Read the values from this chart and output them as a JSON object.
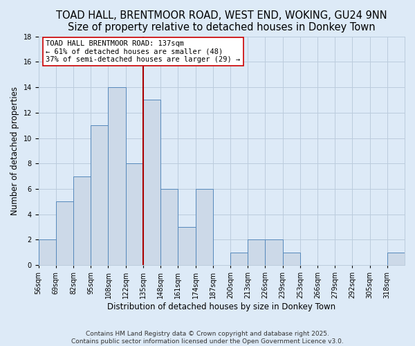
{
  "title": "TOAD HALL, BRENTMOOR ROAD, WEST END, WOKING, GU24 9NN",
  "subtitle": "Size of property relative to detached houses in Donkey Town",
  "xlabel": "Distribution of detached houses by size in Donkey Town",
  "ylabel": "Number of detached properties",
  "footer_line1": "Contains HM Land Registry data © Crown copyright and database right 2025.",
  "footer_line2": "Contains public sector information licensed under the Open Government Licence v3.0.",
  "bar_labels": [
    "56sqm",
    "69sqm",
    "82sqm",
    "95sqm",
    "108sqm",
    "122sqm",
    "135sqm",
    "148sqm",
    "161sqm",
    "174sqm",
    "187sqm",
    "200sqm",
    "213sqm",
    "226sqm",
    "239sqm",
    "253sqm",
    "266sqm",
    "279sqm",
    "292sqm",
    "305sqm",
    "318sqm"
  ],
  "bar_values": [
    2,
    5,
    7,
    11,
    14,
    8,
    13,
    6,
    3,
    6,
    0,
    1,
    2,
    2,
    1,
    0,
    0,
    0,
    0,
    0,
    1
  ],
  "bar_color": "#ccd9e8",
  "bar_edgecolor": "#5588bb",
  "property_line_color": "#aa0000",
  "property_line_x": 6,
  "annotation_line1": "TOAD HALL BRENTMOOR ROAD: 137sqm",
  "annotation_line2": "← 61% of detached houses are smaller (48)",
  "annotation_line3": "37% of semi-detached houses are larger (29) →",
  "annotation_box_facecolor": "#ffffff",
  "annotation_box_edgecolor": "#cc0000",
  "ylim": [
    0,
    18
  ],
  "yticks": [
    0,
    2,
    4,
    6,
    8,
    10,
    12,
    14,
    16,
    18
  ],
  "background_color": "#ddeaf7",
  "grid_color": "#bbccdd",
  "title_fontsize": 10.5,
  "xlabel_fontsize": 8.5,
  "ylabel_fontsize": 8.5,
  "tick_fontsize": 7,
  "annotation_fontsize": 7.5,
  "footer_fontsize": 6.5
}
